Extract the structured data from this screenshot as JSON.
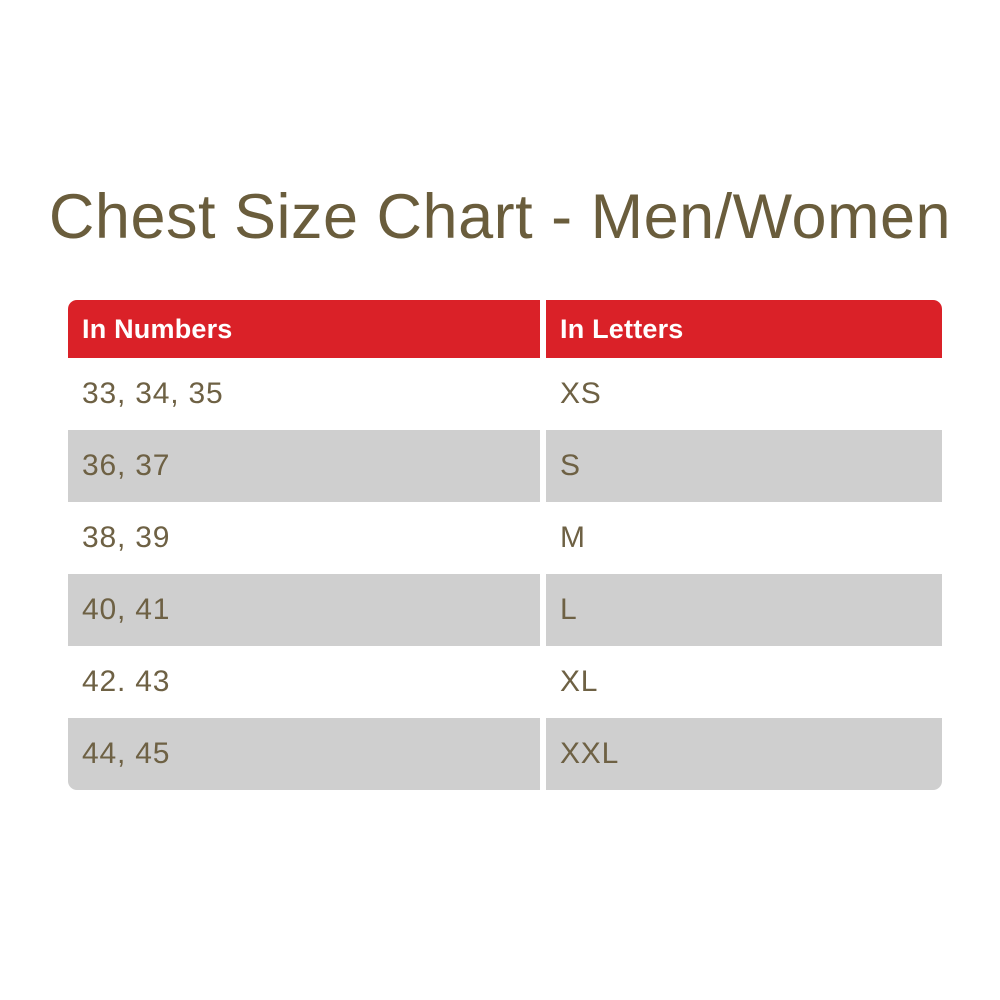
{
  "page_title": "Chest Size Chart - Men/Women",
  "table": {
    "headers": [
      {
        "label": "In Numbers"
      },
      {
        "label": "In Letters"
      }
    ],
    "rows": [
      {
        "numbers": "33, 34, 35",
        "letters": "XS"
      },
      {
        "numbers": "36, 37",
        "letters": "S"
      },
      {
        "numbers": "38, 39",
        "letters": "M"
      },
      {
        "numbers": "40, 41",
        "letters": "L"
      },
      {
        "numbers": "42. 43",
        "letters": "XL"
      },
      {
        "numbers": "44, 45",
        "letters": "XXL"
      }
    ]
  },
  "chart_data": {
    "type": "table",
    "title": "Chest Size Chart - Men/Women",
    "columns": [
      "In Numbers",
      "In Letters"
    ],
    "rows": [
      [
        "33, 34, 35",
        "XS"
      ],
      [
        "36, 37",
        "S"
      ],
      [
        "38, 39",
        "M"
      ],
      [
        "40, 41",
        "L"
      ],
      [
        "42. 43",
        "XL"
      ],
      [
        "44, 45",
        "XXL"
      ]
    ],
    "layout_hints": {
      "header_style": "red banner, white bold text, rounded top corners",
      "row_striping": "white / light gray alternating, rounded bottom corners on last row",
      "column_gutter": "white vertical gap between columns"
    }
  },
  "colors": {
    "background": "#FFFFFF",
    "title_text": "#6A5D3C",
    "header_bg": "#DA2128",
    "header_text": "#FFFFFF",
    "row_plain_bg": "#FFFFFF",
    "row_shaded_bg": "#CFCFCF",
    "body_text": "#6E6144"
  }
}
